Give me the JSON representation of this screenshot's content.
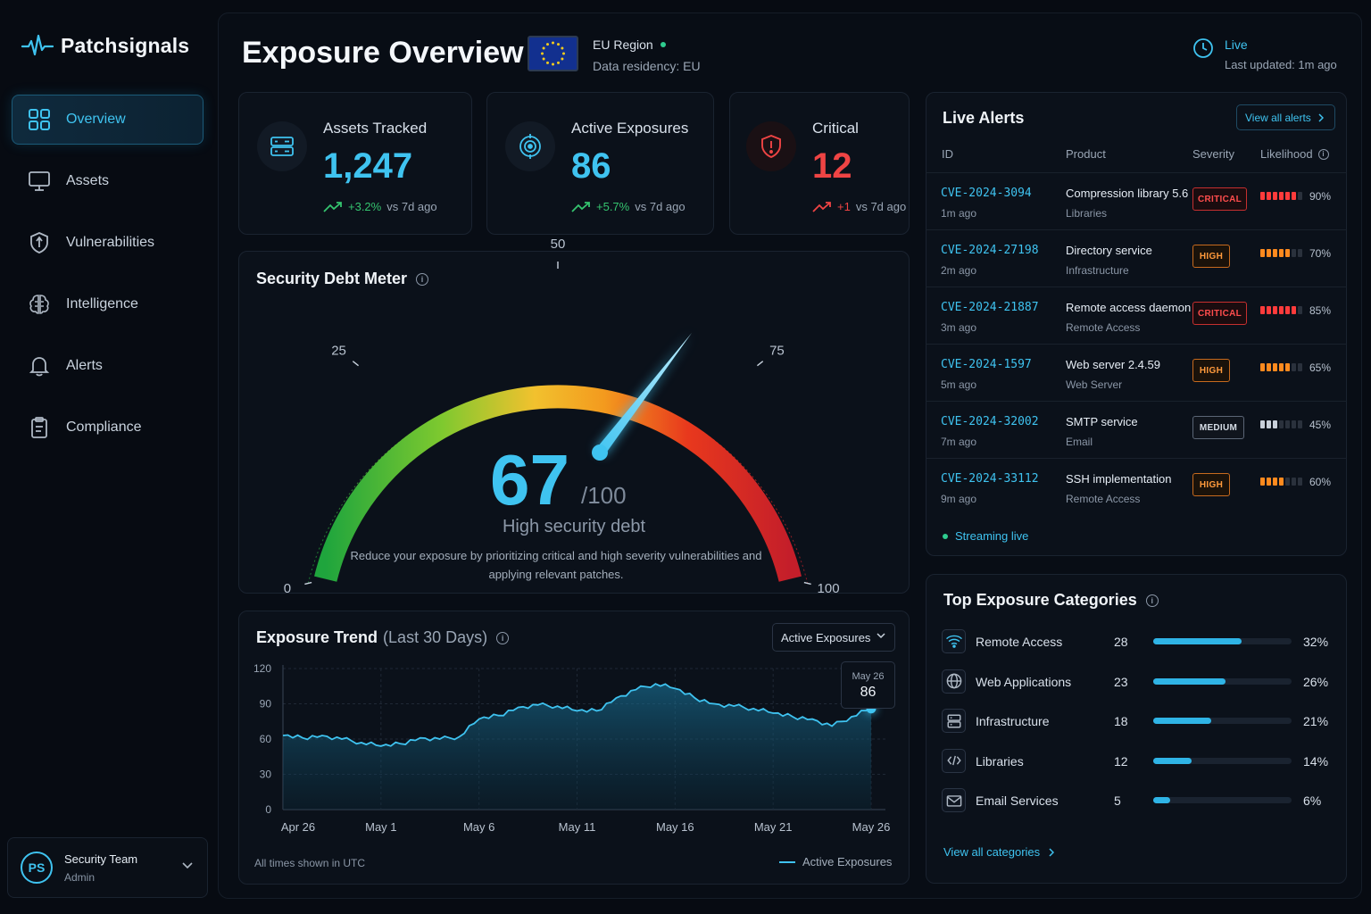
{
  "brand": {
    "name": "Patchsignals"
  },
  "nav": [
    {
      "id": "overview",
      "label": "Overview",
      "icon": "grid-icon",
      "active": true
    },
    {
      "id": "assets",
      "label": "Assets",
      "icon": "monitor-icon"
    },
    {
      "id": "vulnerabilities",
      "label": "Vulnerabilities",
      "icon": "shield-icon"
    },
    {
      "id": "intelligence",
      "label": "Intelligence",
      "icon": "brain-icon"
    },
    {
      "id": "alerts",
      "label": "Alerts",
      "icon": "bell-icon"
    },
    {
      "id": "compliance",
      "label": "Compliance",
      "icon": "clipboard-icon"
    }
  ],
  "user": {
    "initials": "PS",
    "name": "Security Team",
    "role": "Admin"
  },
  "header": {
    "title": "Exposure Overview",
    "region": "EU Region",
    "residency": "Data residency: EU",
    "live_label": "Live",
    "last_updated": "Last updated: 1m ago"
  },
  "stats": [
    {
      "label": "Assets Tracked",
      "value": "1,247",
      "delta": "+3.2%",
      "delta_suffix": "vs 7d ago",
      "tone": "green",
      "icon": "server-icon"
    },
    {
      "label": "Active Exposures",
      "value": "86",
      "delta": "+5.7%",
      "delta_suffix": "vs 7d ago",
      "tone": "green",
      "icon": "target-icon"
    },
    {
      "label": "Critical",
      "value": "12",
      "delta": "+1",
      "delta_suffix": "vs 7d ago",
      "tone": "red",
      "icon": "alert-shield-icon"
    }
  ],
  "gauge": {
    "title": "Security Debt Meter",
    "value": 67,
    "max_label": "/100",
    "min": 0,
    "max": 100,
    "ticks": [
      "0",
      "25",
      "50",
      "75",
      "100"
    ],
    "status": "High security debt",
    "description": "Reduce your exposure by prioritizing critical and high severity vulnerabilities and applying relevant patches.",
    "colors": [
      "#22b14c",
      "#f2c12e",
      "#f39a1e",
      "#e8381d",
      "#c41e2a"
    ]
  },
  "trend": {
    "title": "Exposure Trend",
    "subtitle": "(Last 30 Days)",
    "dropdown": "Active Exposures",
    "footer": "All times shown in UTC",
    "legend": "Active Exposures",
    "tooltip": {
      "date": "May 26",
      "value": "86"
    }
  },
  "chart_data": {
    "type": "area",
    "title": "Exposure Trend (Last 30 Days)",
    "series": [
      {
        "name": "Active Exposures",
        "values": [
          63,
          61,
          63,
          60,
          57,
          54,
          56,
          61,
          60,
          62,
          77,
          80,
          87,
          89,
          88,
          84,
          84,
          95,
          102,
          107,
          103,
          95,
          90,
          88,
          86,
          82,
          79,
          77,
          71,
          79,
          86
        ]
      }
    ],
    "x": [
      "Apr 26",
      "Apr 27",
      "Apr 28",
      "Apr 29",
      "Apr 30",
      "May 1",
      "May 2",
      "May 3",
      "May 4",
      "May 5",
      "May 6",
      "May 7",
      "May 8",
      "May 9",
      "May 10",
      "May 11",
      "May 12",
      "May 13",
      "May 14",
      "May 15",
      "May 16",
      "May 17",
      "May 18",
      "May 19",
      "May 20",
      "May 21",
      "May 22",
      "May 23",
      "May 24",
      "May 25",
      "May 26"
    ],
    "x_tick_labels": [
      "Apr 26",
      "May 1",
      "May 6",
      "May 11",
      "May 16",
      "May 21",
      "May 26"
    ],
    "y_ticks": [
      0,
      30,
      60,
      90,
      120
    ],
    "ylim": [
      0,
      120
    ],
    "grid": true,
    "color": "#3fc3f0"
  },
  "alerts": {
    "title": "Live Alerts",
    "view_all": "View all alerts",
    "columns": {
      "id": "ID",
      "product": "Product",
      "severity": "Severity",
      "likelihood": "Likelihood"
    },
    "rows": [
      {
        "id": "CVE-2024-3094",
        "ago": "1m ago",
        "product": "Compression library 5.6",
        "category": "Libraries",
        "severity": "CRITICAL",
        "level": "critical",
        "likelihood": 90,
        "likelihood_label": "90%"
      },
      {
        "id": "CVE-2024-27198",
        "ago": "2m ago",
        "product": "Directory service",
        "category": "Infrastructure",
        "severity": "HIGH",
        "level": "high",
        "likelihood": 70,
        "likelihood_label": "70%"
      },
      {
        "id": "CVE-2024-21887",
        "ago": "3m ago",
        "product": "Remote access daemon",
        "category": "Remote Access",
        "severity": "CRITICAL",
        "level": "critical",
        "likelihood": 85,
        "likelihood_label": "85%"
      },
      {
        "id": "CVE-2024-1597",
        "ago": "5m ago",
        "product": "Web server 2.4.59",
        "category": "Web Server",
        "severity": "HIGH",
        "level": "high",
        "likelihood": 65,
        "likelihood_label": "65%"
      },
      {
        "id": "CVE-2024-32002",
        "ago": "7m ago",
        "product": "SMTP service",
        "category": "Email",
        "severity": "MEDIUM",
        "level": "medium",
        "likelihood": 45,
        "likelihood_label": "45%"
      },
      {
        "id": "CVE-2024-33112",
        "ago": "9m ago",
        "product": "SSH implementation",
        "category": "Remote Access",
        "severity": "HIGH",
        "level": "high",
        "likelihood": 60,
        "likelihood_label": "60%"
      }
    ],
    "streaming": "Streaming live"
  },
  "categories": {
    "title": "Top Exposure Categories",
    "items": [
      {
        "name": "Remote Access",
        "count": "28",
        "pct": 32,
        "pct_label": "32%",
        "icon": "wifi-icon"
      },
      {
        "name": "Web Applications",
        "count": "23",
        "pct": 26,
        "pct_label": "26%",
        "icon": "globe-icon"
      },
      {
        "name": "Infrastructure",
        "count": "18",
        "pct": 21,
        "pct_label": "21%",
        "icon": "server-icon"
      },
      {
        "name": "Libraries",
        "count": "12",
        "pct": 14,
        "pct_label": "14%",
        "icon": "code-icon"
      },
      {
        "name": "Email Services",
        "count": "5",
        "pct": 6,
        "pct_label": "6%",
        "icon": "mail-icon"
      }
    ],
    "view_all": "View all categories"
  }
}
